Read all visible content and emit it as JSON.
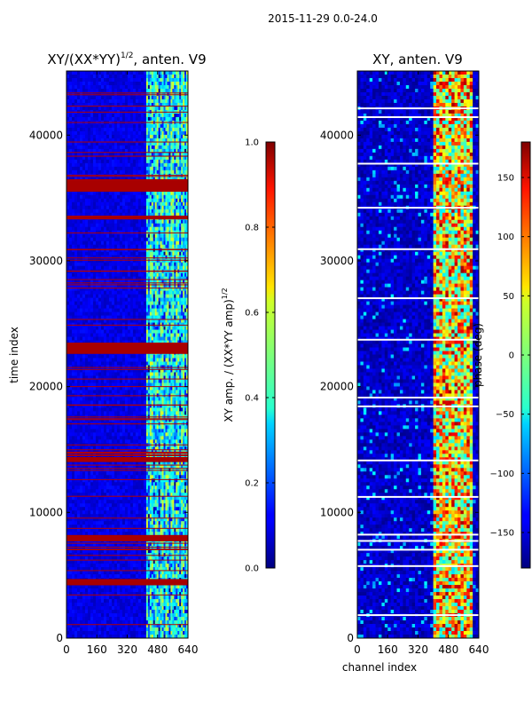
{
  "suptitle": "2015-11-29 0.0-24.0",
  "chart_data": [
    {
      "type": "heatmap",
      "title": "XY/(XX*YY)^1/2, anten. V9",
      "title_parts": {
        "main": "XY/(XX*YY)",
        "sup": "1/2",
        "tail": ", anten. V9"
      },
      "xlabel": "",
      "ylabel": "time index",
      "xlim": [
        0,
        640
      ],
      "ylim": [
        0,
        45100
      ],
      "x_ticks": [
        "0",
        "160",
        "320",
        "480",
        "640"
      ],
      "y_ticks": [
        "0",
        "10000",
        "20000",
        "30000",
        "40000"
      ],
      "colormap": "jet",
      "colorbar": {
        "label_main": "XY amp. / (XX*YY amp)",
        "label_sup": "1/2",
        "range": [
          0.0,
          1.0
        ],
        "ticks": [
          "0.0",
          "0.2",
          "0.4",
          "0.6",
          "0.8",
          "1.0"
        ]
      },
      "features": {
        "background_value": 0.1,
        "bright_channel_band": [
          420,
          640
        ],
        "bright_band_value_range": [
          0.3,
          0.6
        ],
        "saturated_time_bands": [
          [
            35500,
            36500
          ],
          [
            33300,
            33600
          ],
          [
            22600,
            23500
          ],
          [
            14000,
            14400
          ],
          [
            7700,
            8200
          ],
          [
            4200,
            4700
          ]
        ]
      }
    },
    {
      "type": "heatmap",
      "title": "XY, anten. V9",
      "xlabel": "channel index",
      "ylabel": "",
      "xlim": [
        0,
        640
      ],
      "ylim": [
        0,
        45100
      ],
      "x_ticks": [
        "0",
        "160",
        "320",
        "480",
        "640"
      ],
      "y_ticks": [
        "0",
        "10000",
        "20000",
        "30000",
        "40000"
      ],
      "colormap": "jet",
      "colorbar": {
        "label": "phase (deg)",
        "range": [
          -180,
          180
        ],
        "ticks": [
          "150",
          "100",
          "50",
          "0",
          "−50",
          "−100",
          "−150"
        ]
      },
      "features": {
        "background_value": -155,
        "active_channel_band": [
          400,
          600
        ],
        "active_band_value_range": [
          -60,
          170
        ],
        "white_gap_rows": [
          42200,
          41500,
          37800,
          34300,
          31000,
          27100,
          23800,
          19200,
          18500,
          14200,
          11300,
          8300,
          7800,
          7100,
          5800,
          1900
        ]
      }
    }
  ]
}
